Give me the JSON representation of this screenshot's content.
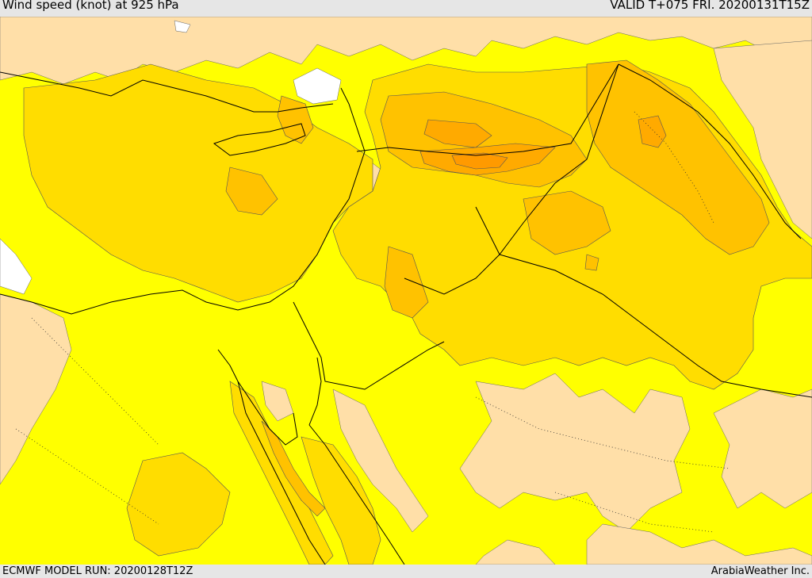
{
  "header": {
    "title": "Wind speed (knot) at 925 hPa",
    "valid": "VALID T+075 FRI. 20200131T15Z"
  },
  "footer": {
    "model_run": "ECMWF MODEL RUN: 20200128T12Z",
    "credit": "ArabiaWeather Inc."
  },
  "colors": {
    "bg_band": "#e6e6e6",
    "calm": "#ffdfa8",
    "light": "#ffff00",
    "moderate": "#ffdd00",
    "fresh": "#ffc200",
    "strong": "#ffaa00",
    "very_strong": "#ff9a00",
    "no_data": "#ffffff"
  },
  "legend_note": ""
}
